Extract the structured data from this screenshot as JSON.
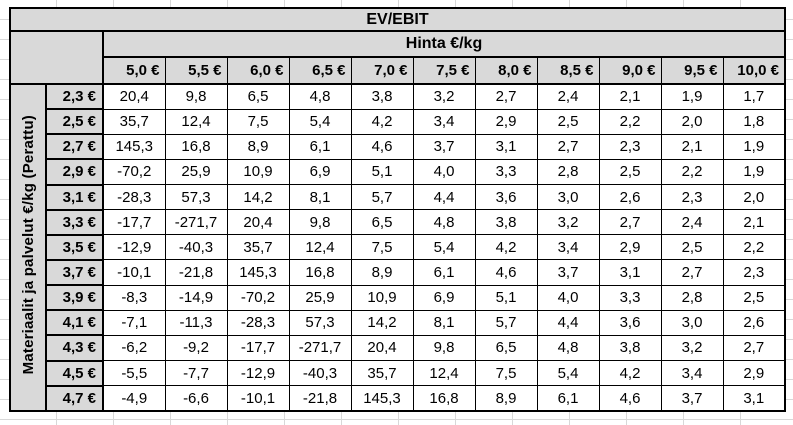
{
  "table": {
    "title": "EV/EBIT",
    "column_group_label": "Hinta €/kg",
    "row_group_label": "Materiaalit ja palvelut €/kg (Perattu)",
    "column_headers": [
      "5,0 €",
      "5,5 €",
      "6,0 €",
      "6,5 €",
      "7,0 €",
      "7,5 €",
      "8,0 €",
      "8,5 €",
      "9,0 €",
      "9,5 €",
      "10,0 €"
    ],
    "rows": [
      {
        "label": "2,3 €",
        "values": [
          "20,4",
          "9,8",
          "6,5",
          "4,8",
          "3,8",
          "3,2",
          "2,7",
          "2,4",
          "2,1",
          "1,9",
          "1,7"
        ]
      },
      {
        "label": "2,5 €",
        "values": [
          "35,7",
          "12,4",
          "7,5",
          "5,4",
          "4,2",
          "3,4",
          "2,9",
          "2,5",
          "2,2",
          "2,0",
          "1,8"
        ]
      },
      {
        "label": "2,7 €",
        "values": [
          "145,3",
          "16,8",
          "8,9",
          "6,1",
          "4,6",
          "3,7",
          "3,1",
          "2,7",
          "2,3",
          "2,1",
          "1,9"
        ]
      },
      {
        "label": "2,9 €",
        "values": [
          "-70,2",
          "25,9",
          "10,9",
          "6,9",
          "5,1",
          "4,0",
          "3,3",
          "2,8",
          "2,5",
          "2,2",
          "1,9"
        ]
      },
      {
        "label": "3,1 €",
        "values": [
          "-28,3",
          "57,3",
          "14,2",
          "8,1",
          "5,7",
          "4,4",
          "3,6",
          "3,0",
          "2,6",
          "2,3",
          "2,0"
        ]
      },
      {
        "label": "3,3 €",
        "values": [
          "-17,7",
          "-271,7",
          "20,4",
          "9,8",
          "6,5",
          "4,8",
          "3,8",
          "3,2",
          "2,7",
          "2,4",
          "2,1"
        ]
      },
      {
        "label": "3,5 €",
        "values": [
          "-12,9",
          "-40,3",
          "35,7",
          "12,4",
          "7,5",
          "5,4",
          "4,2",
          "3,4",
          "2,9",
          "2,5",
          "2,2"
        ]
      },
      {
        "label": "3,7 €",
        "values": [
          "-10,1",
          "-21,8",
          "145,3",
          "16,8",
          "8,9",
          "6,1",
          "4,6",
          "3,7",
          "3,1",
          "2,7",
          "2,3"
        ]
      },
      {
        "label": "3,9 €",
        "values": [
          "-8,3",
          "-14,9",
          "-70,2",
          "25,9",
          "10,9",
          "6,9",
          "5,1",
          "4,0",
          "3,3",
          "2,8",
          "2,5"
        ]
      },
      {
        "label": "4,1 €",
        "values": [
          "-7,1",
          "-11,3",
          "-28,3",
          "57,3",
          "14,2",
          "8,1",
          "5,7",
          "4,4",
          "3,6",
          "3,0",
          "2,6"
        ]
      },
      {
        "label": "4,3 €",
        "values": [
          "-6,2",
          "-9,2",
          "-17,7",
          "-271,7",
          "20,4",
          "9,8",
          "6,5",
          "4,8",
          "3,8",
          "3,2",
          "2,7"
        ]
      },
      {
        "label": "4,5 €",
        "values": [
          "-5,5",
          "-7,7",
          "-12,9",
          "-40,3",
          "35,7",
          "12,4",
          "7,5",
          "5,4",
          "4,2",
          "3,4",
          "2,9"
        ]
      },
      {
        "label": "4,7 €",
        "values": [
          "-4,9",
          "-6,6",
          "-10,1",
          "-21,8",
          "145,3",
          "16,8",
          "8,9",
          "6,1",
          "4,6",
          "3,7",
          "3,1"
        ]
      }
    ]
  },
  "colors": {
    "header_bg": "#d9d9d9",
    "cell_bg": "#ffffff",
    "border": "#000000",
    "text": "#000000",
    "sheet_gridline": "#d8d8d8",
    "sheet_bg": "#ffffff"
  }
}
